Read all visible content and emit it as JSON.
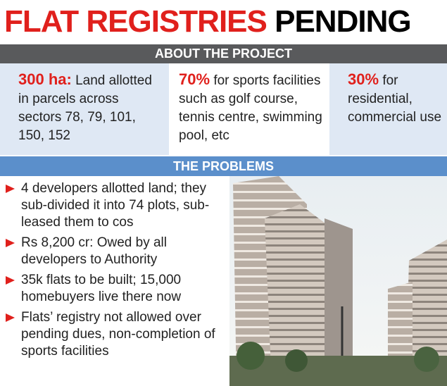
{
  "header": {
    "title_red": "FLAT REGISTRIES",
    "title_black": "PENDING"
  },
  "about": {
    "heading": "ABOUT THE PROJECT",
    "facts": [
      {
        "highlight": "300 ha:",
        "text": "Land allotted in parcels across sectors 78, 79, 101, 150, 152"
      },
      {
        "highlight": "70%",
        "text": "for sports facilities such as golf course, tennis centre, swimming pool, etc"
      },
      {
        "highlight": "30%",
        "text": "for residential, commercial use"
      }
    ]
  },
  "problems": {
    "heading": "THE PROBLEMS",
    "items": [
      "4 developers allotted land; they sub-divided it into 74 plots, sub-leased them to cos",
      "Rs 8,200 cr: Owed by all developers to Authority",
      "35k flats to be built; 15,000 homebuyers live there now",
      "Flats’ registry not allowed over pending dues, non-completion of sports facilities"
    ]
  }
}
